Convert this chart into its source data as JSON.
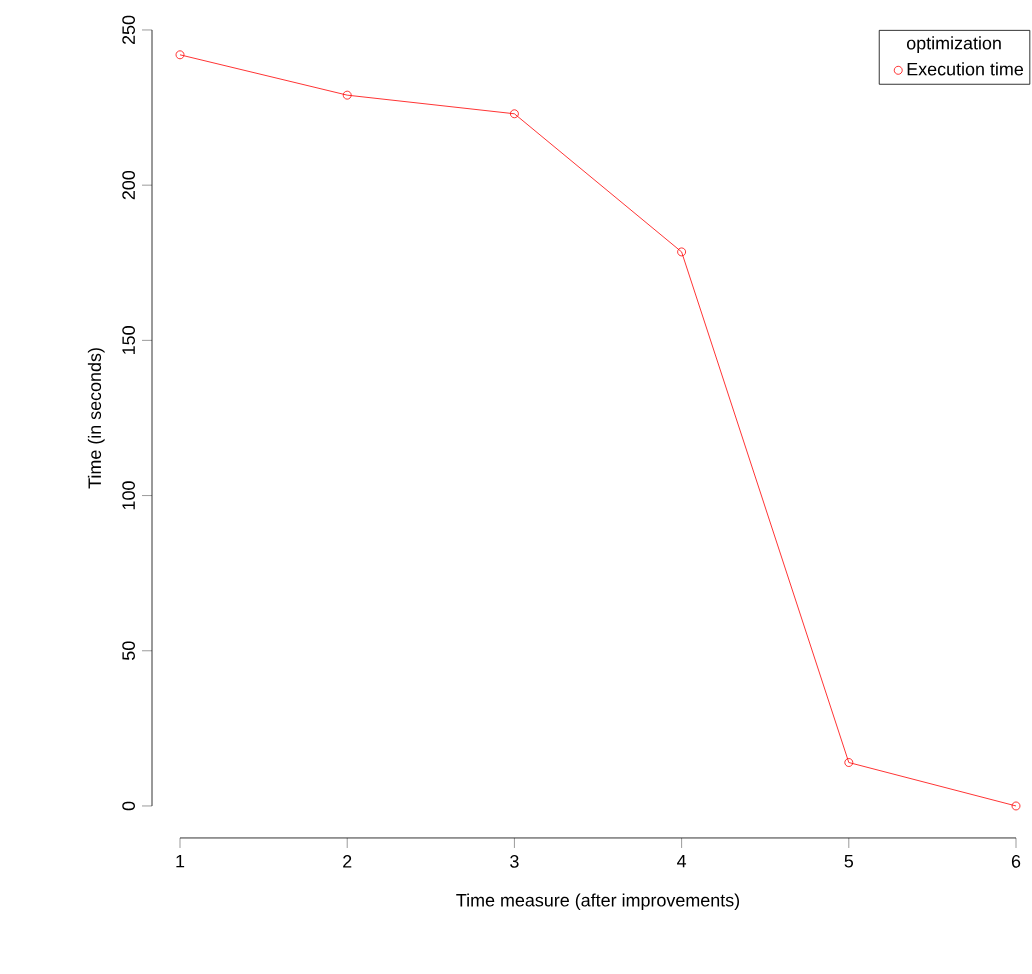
{
  "chart_data": {
    "type": "line",
    "xlabel": "Time measure (after improvements)",
    "ylabel": "Time (in seconds)",
    "legend_title": "optimization",
    "x": [
      1,
      2,
      3,
      4,
      5,
      6
    ],
    "series": [
      {
        "name": "Execution time",
        "color": "#ff0000",
        "values": [
          242,
          229,
          223,
          178.5,
          14,
          0
        ]
      }
    ],
    "xlim": [
      1,
      6
    ],
    "ylim": [
      0,
      250
    ],
    "xticks": [
      1,
      2,
      3,
      4,
      5,
      6
    ],
    "yticks": [
      0,
      50,
      100,
      150,
      200,
      250
    ],
    "legend": "top right",
    "marker": "circle",
    "line_style": "solid",
    "grid": false
  }
}
